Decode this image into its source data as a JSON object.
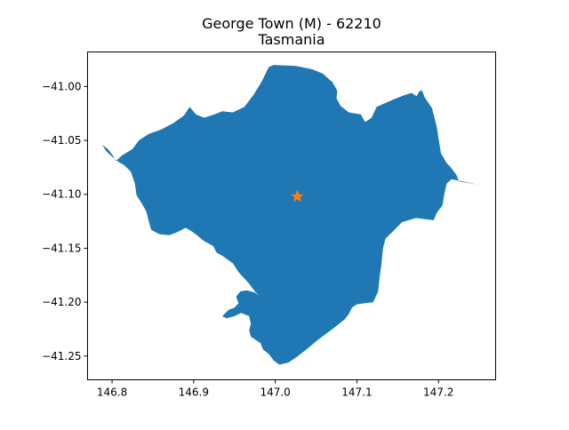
{
  "figure": {
    "title_line1": "George Town (M) - 62210",
    "title_line2": "Tasmania"
  },
  "map": {
    "region_color": "#1f77b4",
    "marker_color": "#ff7f0e",
    "marker_icon": "star-icon",
    "marker_point": {
      "lon": 147.027,
      "lat": -41.102
    },
    "xlim": [
      146.77,
      147.27
    ],
    "ylim": [
      -41.272,
      -40.968
    ],
    "x_ticks": [
      {
        "value": 146.8,
        "label": "146.8"
      },
      {
        "value": 146.9,
        "label": "146.9"
      },
      {
        "value": 147.0,
        "label": "147.0"
      },
      {
        "value": 147.1,
        "label": "147.1"
      },
      {
        "value": 147.2,
        "label": "147.2"
      }
    ],
    "y_ticks": [
      {
        "value": -41.0,
        "label": "−41.00"
      },
      {
        "value": -41.05,
        "label": "−41.05"
      },
      {
        "value": -41.1,
        "label": "−41.10"
      },
      {
        "value": -41.15,
        "label": "−41.15"
      },
      {
        "value": -41.2,
        "label": "−41.20"
      },
      {
        "value": -41.25,
        "label": "−41.25"
      }
    ],
    "region_outline": [
      [
        146.788,
        -41.054
      ],
      [
        146.795,
        -41.058
      ],
      [
        146.8,
        -41.063
      ],
      [
        146.805,
        -41.069
      ],
      [
        146.812,
        -41.064
      ],
      [
        146.825,
        -41.058
      ],
      [
        146.833,
        -41.05
      ],
      [
        146.845,
        -41.044
      ],
      [
        146.86,
        -41.04
      ],
      [
        146.875,
        -41.034
      ],
      [
        146.888,
        -41.027
      ],
      [
        146.895,
        -41.019
      ],
      [
        146.903,
        -41.026
      ],
      [
        146.913,
        -41.029
      ],
      [
        146.925,
        -41.026
      ],
      [
        146.935,
        -41.023
      ],
      [
        146.948,
        -41.024
      ],
      [
        146.962,
        -41.019
      ],
      [
        146.973,
        -41.008
      ],
      [
        146.983,
        -40.996
      ],
      [
        146.992,
        -40.982
      ],
      [
        146.998,
        -40.98
      ],
      [
        147.025,
        -40.981
      ],
      [
        147.045,
        -40.984
      ],
      [
        147.058,
        -40.988
      ],
      [
        147.07,
        -40.996
      ],
      [
        147.076,
        -41.004
      ],
      [
        147.075,
        -41.011
      ],
      [
        147.08,
        -41.018
      ],
      [
        147.09,
        -41.024
      ],
      [
        147.105,
        -41.026
      ],
      [
        147.11,
        -41.033
      ],
      [
        147.118,
        -41.029
      ],
      [
        147.124,
        -41.019
      ],
      [
        147.133,
        -41.016
      ],
      [
        147.145,
        -41.012
      ],
      [
        147.158,
        -41.008
      ],
      [
        147.167,
        -41.006
      ],
      [
        147.173,
        -41.009
      ],
      [
        147.177,
        -41.004
      ],
      [
        147.18,
        -41.004
      ],
      [
        147.183,
        -41.01
      ],
      [
        147.192,
        -41.02
      ],
      [
        147.198,
        -41.038
      ],
      [
        147.2,
        -41.048
      ],
      [
        147.203,
        -41.062
      ],
      [
        147.21,
        -41.071
      ],
      [
        147.215,
        -41.075
      ],
      [
        147.222,
        -41.082
      ],
      [
        147.225,
        -41.088
      ],
      [
        147.232,
        -41.089
      ],
      [
        147.248,
        -41.091
      ],
      [
        147.216,
        -41.086
      ],
      [
        147.21,
        -41.09
      ],
      [
        147.207,
        -41.1
      ],
      [
        147.205,
        -41.11
      ],
      [
        147.198,
        -41.117
      ],
      [
        147.194,
        -41.124
      ],
      [
        147.172,
        -41.122
      ],
      [
        147.155,
        -41.126
      ],
      [
        147.142,
        -41.136
      ],
      [
        147.135,
        -41.141
      ],
      [
        147.132,
        -41.15
      ],
      [
        147.13,
        -41.165
      ],
      [
        147.128,
        -41.176
      ],
      [
        147.126,
        -41.19
      ],
      [
        147.12,
        -41.2
      ],
      [
        147.11,
        -41.201
      ],
      [
        147.1,
        -41.202
      ],
      [
        147.094,
        -41.205
      ],
      [
        147.09,
        -41.211
      ],
      [
        147.085,
        -41.216
      ],
      [
        147.068,
        -41.226
      ],
      [
        147.052,
        -41.235
      ],
      [
        147.038,
        -41.244
      ],
      [
        147.026,
        -41.251
      ],
      [
        147.016,
        -41.256
      ],
      [
        147.005,
        -41.258
      ],
      [
        146.998,
        -41.254
      ],
      [
        146.992,
        -41.248
      ],
      [
        146.985,
        -41.244
      ],
      [
        146.982,
        -41.238
      ],
      [
        146.976,
        -41.235
      ],
      [
        146.97,
        -41.232
      ],
      [
        146.968,
        -41.226
      ],
      [
        146.97,
        -41.22
      ],
      [
        146.968,
        -41.213
      ],
      [
        146.958,
        -41.21
      ],
      [
        146.95,
        -41.213
      ],
      [
        146.94,
        -41.215
      ],
      [
        146.935,
        -41.213
      ],
      [
        146.943,
        -41.207
      ],
      [
        146.95,
        -41.205
      ],
      [
        146.955,
        -41.201
      ],
      [
        146.952,
        -41.195
      ],
      [
        146.957,
        -41.19
      ],
      [
        146.965,
        -41.189
      ],
      [
        146.975,
        -41.191
      ],
      [
        146.98,
        -41.194
      ],
      [
        146.975,
        -41.19
      ],
      [
        146.968,
        -41.183
      ],
      [
        146.962,
        -41.178
      ],
      [
        146.955,
        -41.172
      ],
      [
        146.948,
        -41.164
      ],
      [
        146.935,
        -41.157
      ],
      [
        146.928,
        -41.154
      ],
      [
        146.924,
        -41.148
      ],
      [
        146.912,
        -41.143
      ],
      [
        146.904,
        -41.138
      ],
      [
        146.897,
        -41.134
      ],
      [
        146.89,
        -41.131
      ],
      [
        146.88,
        -41.135
      ],
      [
        146.87,
        -41.138
      ],
      [
        146.858,
        -41.137
      ],
      [
        146.848,
        -41.133
      ],
      [
        146.845,
        -41.125
      ],
      [
        146.842,
        -41.116
      ],
      [
        146.836,
        -41.108
      ],
      [
        146.83,
        -41.101
      ],
      [
        146.828,
        -41.09
      ],
      [
        146.823,
        -41.079
      ],
      [
        146.815,
        -41.073
      ],
      [
        146.808,
        -41.07
      ],
      [
        146.8,
        -41.065
      ],
      [
        146.793,
        -41.06
      ],
      [
        146.788,
        -41.054
      ]
    ]
  }
}
